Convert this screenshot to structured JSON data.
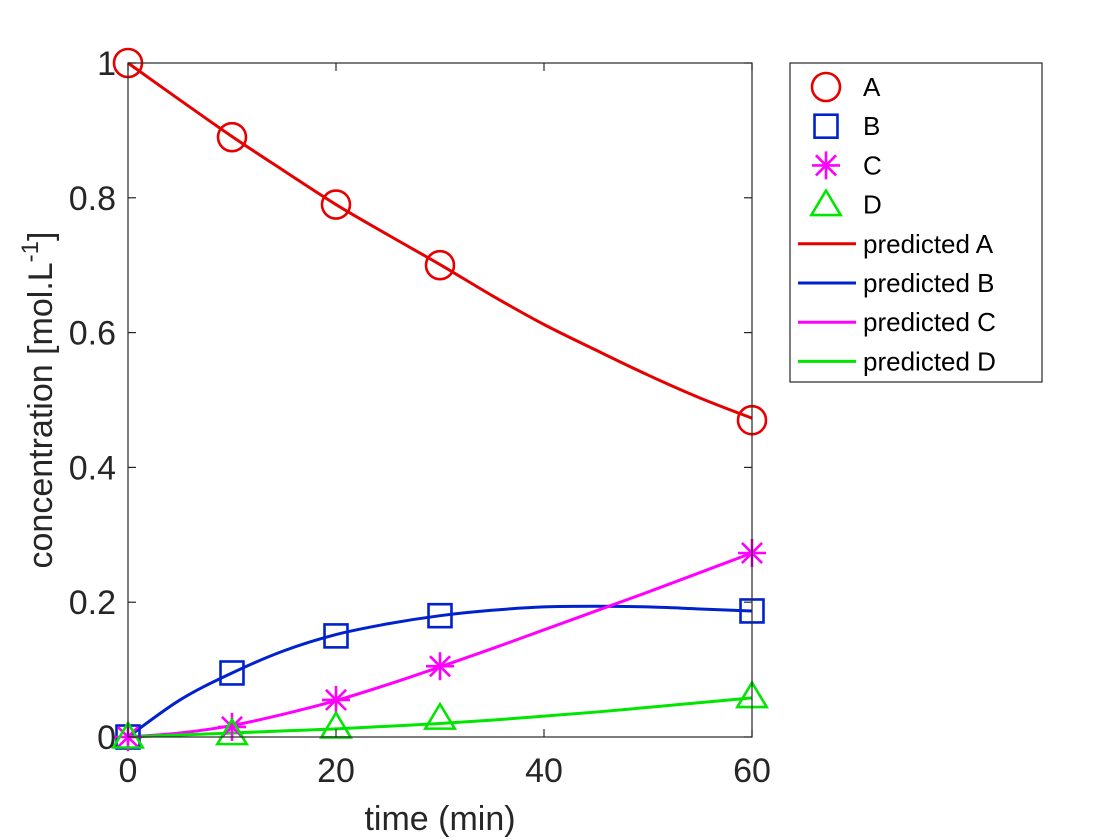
{
  "chart_data": {
    "type": "line",
    "xlabel": "time (min)",
    "ylabel": {
      "main": "concentration [mol.L",
      "superscript": "-1",
      "close": "]"
    },
    "xlim": [
      0,
      60
    ],
    "ylim": [
      0,
      1
    ],
    "x_ticks": [
      0,
      20,
      40,
      60
    ],
    "x_tick_labels": [
      "0",
      "20",
      "40",
      "60"
    ],
    "y_ticks": [
      0,
      0.2,
      0.4,
      0.6,
      0.8,
      1
    ],
    "y_tick_labels": [
      "0",
      "0.2",
      "0.4",
      "0.6",
      "0.8",
      "1"
    ],
    "grid": false,
    "legend_position": "outside-top-right",
    "measured": [
      {
        "name": "A",
        "marker": "circle",
        "color": "#e60000",
        "x": [
          0,
          10,
          20,
          30,
          60
        ],
        "y": [
          1.0,
          0.89,
          0.79,
          0.7,
          0.47
        ]
      },
      {
        "name": "B",
        "marker": "square",
        "color": "#0022cc",
        "x": [
          0,
          10,
          20,
          30,
          60
        ],
        "y": [
          0.0,
          0.095,
          0.15,
          0.18,
          0.187
        ]
      },
      {
        "name": "C",
        "marker": "asterisk",
        "color": "#ff00ff",
        "x": [
          0,
          10,
          20,
          30,
          60
        ],
        "y": [
          0.0,
          0.015,
          0.055,
          0.105,
          0.273
        ]
      },
      {
        "name": "D",
        "marker": "triangle",
        "color": "#00e600",
        "x": [
          0,
          10,
          20,
          30,
          60
        ],
        "y": [
          0.0,
          0.005,
          0.015,
          0.028,
          0.06
        ]
      }
    ],
    "predicted": [
      {
        "name": "predicted A",
        "color": "#e60000",
        "x": [
          0,
          5,
          10,
          15,
          20,
          25,
          30,
          35,
          40,
          45,
          50,
          55,
          60
        ],
        "y": [
          1.0,
          0.945,
          0.891,
          0.84,
          0.79,
          0.745,
          0.701,
          0.655,
          0.612,
          0.574,
          0.537,
          0.503,
          0.473
        ]
      },
      {
        "name": "predicted B",
        "color": "#0022cc",
        "x": [
          0,
          5,
          10,
          15,
          20,
          25,
          30,
          35,
          40,
          45,
          50,
          55,
          60
        ],
        "y": [
          0.0,
          0.055,
          0.095,
          0.128,
          0.152,
          0.168,
          0.18,
          0.188,
          0.193,
          0.194,
          0.193,
          0.19,
          0.187
        ]
      },
      {
        "name": "predicted C",
        "color": "#ff00ff",
        "x": [
          0,
          5,
          10,
          15,
          20,
          25,
          30,
          35,
          40,
          45,
          50,
          55,
          60
        ],
        "y": [
          0.0,
          0.006,
          0.017,
          0.034,
          0.054,
          0.078,
          0.104,
          0.131,
          0.159,
          0.187,
          0.215,
          0.244,
          0.273
        ]
      },
      {
        "name": "predicted D",
        "color": "#00e600",
        "x": [
          0,
          5,
          10,
          15,
          20,
          25,
          30,
          35,
          40,
          45,
          50,
          55,
          60
        ],
        "y": [
          0.0,
          0.003,
          0.006,
          0.009,
          0.012,
          0.016,
          0.02,
          0.025,
          0.031,
          0.037,
          0.044,
          0.051,
          0.058
        ]
      }
    ]
  }
}
